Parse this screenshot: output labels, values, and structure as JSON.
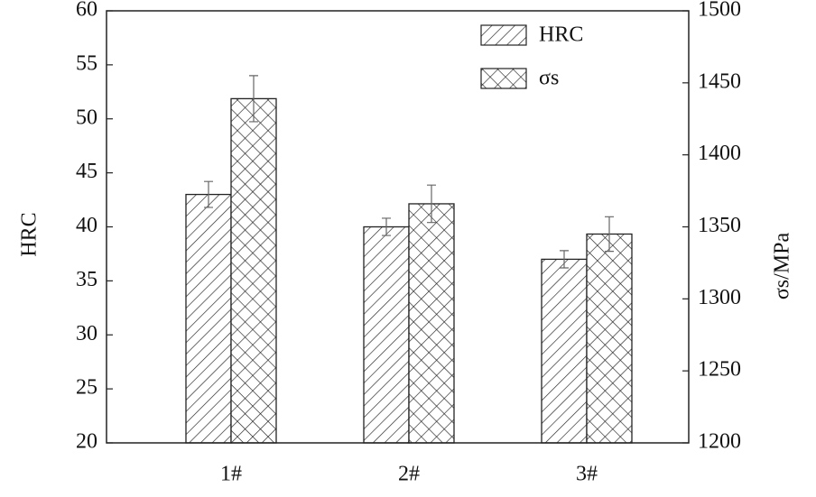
{
  "chart_data": {
    "type": "bar",
    "categories": [
      "1#",
      "2#",
      "3#"
    ],
    "y_label": "HRC",
    "y2_label": "σs/MPa",
    "ylim": [
      20,
      60
    ],
    "yticks": [
      20,
      25,
      30,
      35,
      40,
      45,
      50,
      55,
      60
    ],
    "y2lim": [
      1200,
      1500
    ],
    "y2ticks": [
      1200,
      1250,
      1300,
      1350,
      1400,
      1450,
      1500
    ],
    "legend": "upper right",
    "series": [
      {
        "name": "HRC",
        "color": "#222222",
        "values": [
          43,
          40,
          37
        ],
        "errors": [
          1.2,
          0.8,
          0.8
        ]
      },
      {
        "name": "σs",
        "color": "#222222",
        "axis": "y2",
        "values": [
          1439,
          1366,
          1345
        ],
        "errors": [
          16,
          13,
          12
        ]
      }
    ]
  }
}
